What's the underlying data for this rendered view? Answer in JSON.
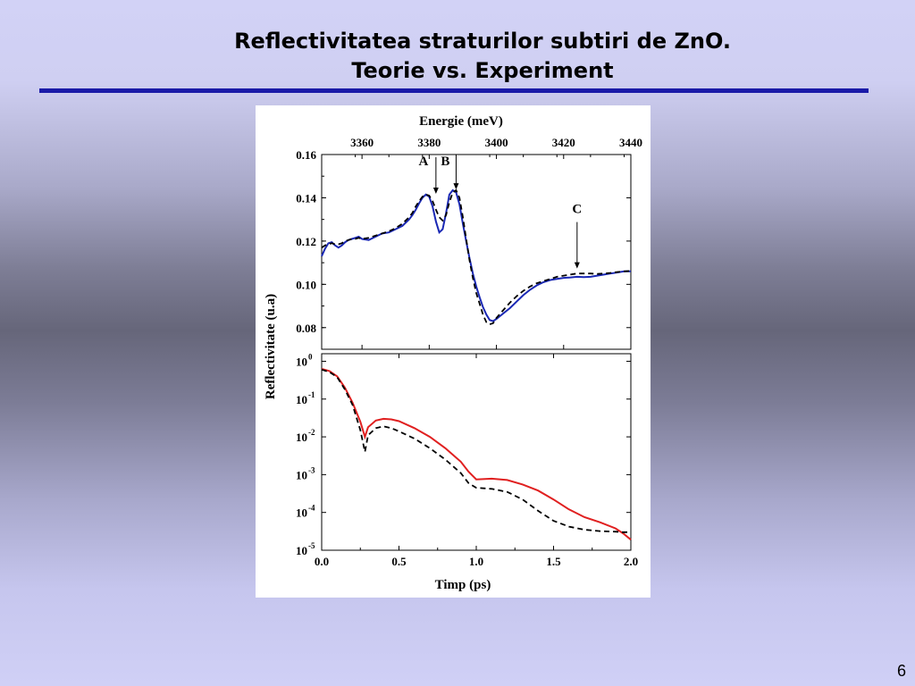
{
  "slide": {
    "title_line1": "Reflectivitatea straturilor subtiri de  ZnO.",
    "title_line2": "Teorie vs. Experiment",
    "page_number": "6"
  },
  "chart_data": [
    {
      "type": "line",
      "panel": "top",
      "xlabel": "Energie (meV)",
      "ylabel": "Reflectivitate (u.a)",
      "xlim": [
        3348,
        3440
      ],
      "ylim": [
        0.07,
        0.16
      ],
      "x_ticks": [
        3360,
        3380,
        3400,
        3420,
        3440
      ],
      "x_tick_labels": [
        "3360",
        "3380",
        "3400",
        "3420",
        "3440"
      ],
      "y_ticks": [
        0.08,
        0.1,
        0.12,
        0.14,
        0.16
      ],
      "y_tick_labels": [
        "0.08",
        "0.10",
        "0.12",
        "0.14",
        "0.16"
      ],
      "annotations": [
        {
          "label": "A",
          "x": 3382,
          "y": 0.141
        },
        {
          "label": "B",
          "x": 3388,
          "y": 0.143
        },
        {
          "label": "C",
          "x": 3424,
          "y": 0.1065
        }
      ],
      "series": [
        {
          "style": "solid",
          "color": "#1a28b4",
          "x": [
            3348,
            3349,
            3350,
            3351,
            3352,
            3353,
            3354,
            3355,
            3356,
            3357,
            3358,
            3359,
            3360,
            3362,
            3364,
            3366,
            3368,
            3370,
            3372,
            3374,
            3375,
            3376,
            3377,
            3378,
            3379,
            3380,
            3381,
            3382,
            3383,
            3384,
            3385,
            3386,
            3387,
            3388,
            3389,
            3390,
            3391,
            3392,
            3393,
            3394,
            3395,
            3396,
            3397,
            3398,
            3399,
            3400,
            3402,
            3404,
            3406,
            3408,
            3410,
            3412,
            3414,
            3416,
            3418,
            3420,
            3422,
            3424,
            3426,
            3428,
            3430,
            3432,
            3434,
            3436,
            3438,
            3440
          ],
          "y": [
            0.113,
            0.1165,
            0.119,
            0.1195,
            0.118,
            0.117,
            0.118,
            0.1195,
            0.1205,
            0.121,
            0.1215,
            0.122,
            0.121,
            0.1205,
            0.122,
            0.1235,
            0.124,
            0.1255,
            0.127,
            0.13,
            0.132,
            0.1345,
            0.1375,
            0.14,
            0.1415,
            0.1405,
            0.136,
            0.129,
            0.124,
            0.1255,
            0.133,
            0.1415,
            0.1435,
            0.1425,
            0.137,
            0.128,
            0.12,
            0.112,
            0.105,
            0.099,
            0.094,
            0.0895,
            0.086,
            0.0835,
            0.083,
            0.084,
            0.0865,
            0.089,
            0.092,
            0.095,
            0.0975,
            0.0995,
            0.101,
            0.102,
            0.1025,
            0.103,
            0.1032,
            0.1035,
            0.1033,
            0.1035,
            0.104,
            0.1045,
            0.105,
            0.1055,
            0.106,
            0.106
          ]
        },
        {
          "style": "dashed",
          "color": "#000000",
          "x": [
            3348,
            3349,
            3350,
            3351,
            3352,
            3353,
            3354,
            3355,
            3356,
            3357,
            3358,
            3359,
            3360,
            3362,
            3364,
            3366,
            3368,
            3370,
            3372,
            3374,
            3375,
            3376,
            3377,
            3378,
            3379,
            3380,
            3381,
            3382,
            3383,
            3384,
            3385,
            3386,
            3387,
            3388,
            3389,
            3390,
            3391,
            3392,
            3393,
            3394,
            3395,
            3396,
            3397,
            3398,
            3399,
            3400,
            3402,
            3404,
            3406,
            3408,
            3410,
            3412,
            3414,
            3416,
            3418,
            3420,
            3422,
            3424,
            3426,
            3428,
            3430,
            3432,
            3434,
            3436,
            3438,
            3440
          ],
          "y": [
            0.117,
            0.118,
            0.1185,
            0.119,
            0.1185,
            0.1185,
            0.119,
            0.12,
            0.1205,
            0.121,
            0.121,
            0.1215,
            0.121,
            0.1215,
            0.1225,
            0.1235,
            0.1245,
            0.126,
            0.128,
            0.131,
            0.133,
            0.136,
            0.1385,
            0.1405,
            0.1415,
            0.141,
            0.1385,
            0.1345,
            0.131,
            0.1295,
            0.132,
            0.138,
            0.1425,
            0.1435,
            0.14,
            0.131,
            0.121,
            0.111,
            0.103,
            0.096,
            0.091,
            0.086,
            0.0825,
            0.0815,
            0.082,
            0.0845,
            0.088,
            0.0915,
            0.0945,
            0.097,
            0.099,
            0.1005,
            0.1015,
            0.1025,
            0.1035,
            0.104,
            0.1045,
            0.105,
            0.105,
            0.105,
            0.1048,
            0.105,
            0.1053,
            0.1057,
            0.106,
            0.1062
          ]
        }
      ]
    },
    {
      "type": "line",
      "panel": "bottom",
      "scale": "log",
      "xlabel": "Timp (ps)",
      "ylabel": "Reflectivitate (u.a)",
      "xlim": [
        0,
        2.0
      ],
      "ylim_exponent": [
        -5,
        0.2
      ],
      "x_ticks": [
        0.0,
        0.5,
        1.0,
        1.5,
        2.0
      ],
      "x_tick_labels": [
        "0.0",
        "0.5",
        "1.0",
        "1.5",
        "2.0"
      ],
      "y_ticks_exponent": [
        0,
        -1,
        -2,
        -3,
        -4,
        -5
      ],
      "y_tick_base": "10",
      "y_tick_exponent_labels": [
        "0",
        "-1",
        "-2",
        "-3",
        "-4",
        "-5"
      ],
      "series": [
        {
          "style": "solid",
          "color": "#e02020",
          "x": [
            0,
            0.05,
            0.1,
            0.15,
            0.2,
            0.25,
            0.28,
            0.3,
            0.35,
            0.4,
            0.45,
            0.5,
            0.6,
            0.7,
            0.8,
            0.9,
            0.95,
            1.0,
            1.1,
            1.2,
            1.3,
            1.4,
            1.5,
            1.6,
            1.7,
            1.8,
            1.9,
            1.95,
            2.0
          ],
          "y": [
            0.63,
            0.55,
            0.4,
            0.2,
            0.08,
            0.025,
            0.01,
            0.018,
            0.027,
            0.03,
            0.029,
            0.026,
            0.017,
            0.01,
            0.005,
            0.0022,
            0.0012,
            0.00075,
            0.00078,
            0.00072,
            0.00055,
            0.00038,
            0.00022,
            0.00012,
            7.5e-05,
            5.5e-05,
            3.8e-05,
            2.8e-05,
            1.9e-05
          ]
        },
        {
          "style": "dashed",
          "color": "#000000",
          "x": [
            0,
            0.05,
            0.1,
            0.15,
            0.2,
            0.25,
            0.28,
            0.3,
            0.35,
            0.4,
            0.45,
            0.5,
            0.6,
            0.7,
            0.8,
            0.9,
            0.95,
            1.0,
            1.1,
            1.2,
            1.3,
            1.4,
            1.5,
            1.6,
            1.7,
            1.8,
            1.9,
            1.95,
            2.0
          ],
          "y": [
            0.6,
            0.52,
            0.38,
            0.18,
            0.07,
            0.015,
            0.004,
            0.011,
            0.017,
            0.019,
            0.017,
            0.014,
            0.009,
            0.005,
            0.0025,
            0.0011,
            0.0006,
            0.00045,
            0.00042,
            0.00035,
            0.00022,
            0.00011,
            6e-05,
            4.2e-05,
            3.5e-05,
            3.2e-05,
            3.1e-05,
            3e-05,
            3e-05
          ]
        }
      ]
    }
  ]
}
